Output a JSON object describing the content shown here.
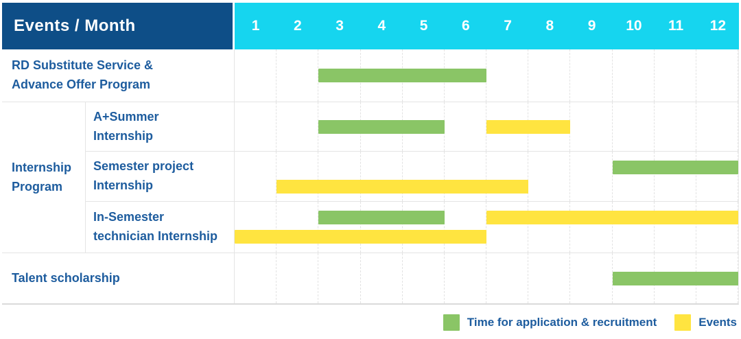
{
  "header": {
    "title": "Events / Month",
    "months": [
      "1",
      "2",
      "3",
      "4",
      "5",
      "6",
      "7",
      "8",
      "9",
      "10",
      "11",
      "12"
    ]
  },
  "group_label": "Internship Program",
  "group_label_display": "Internship\nProgram",
  "colors": {
    "header_bg": "#0e4e87",
    "month_header_bg": "#16d5ef",
    "header_text": "#ffffff",
    "label_text": "#1d5c9e",
    "application": "#8ac566",
    "event": "#ffe440"
  },
  "chart_data": {
    "type": "bar",
    "subtype": "gantt-timeline",
    "title": "Events / Month",
    "xlabel": "Month",
    "x_ticks": [
      "1",
      "2",
      "3",
      "4",
      "5",
      "6",
      "7",
      "8",
      "9",
      "10",
      "11",
      "12"
    ],
    "x_range": [
      1,
      12
    ],
    "grid": true,
    "legend_position": "bottom-right",
    "rows": [
      {
        "label": "RD Substitute Service & Advance Offer Program",
        "label_display": "RD Substitute Service &\nAdvance Offer Program",
        "group": "",
        "bars": [
          {
            "kind": "application",
            "start_month": 3,
            "end_month": 6,
            "track": "mid"
          }
        ]
      },
      {
        "label": "A+Summer Internship",
        "label_display": "A+Summer\nInternship",
        "group": "Internship Program",
        "bars": [
          {
            "kind": "application",
            "start_month": 3,
            "end_month": 5,
            "track": "mid"
          },
          {
            "kind": "event",
            "start_month": 7,
            "end_month": 8,
            "track": "mid"
          }
        ]
      },
      {
        "label": "Semester project Internship",
        "label_display": "Semester project\nInternship",
        "group": "Internship Program",
        "bars": [
          {
            "kind": "application",
            "start_month": 10,
            "end_month": 12,
            "track": "top"
          },
          {
            "kind": "event",
            "start_month": 2,
            "end_month": 7,
            "track": "bottom"
          }
        ]
      },
      {
        "label": "In-Semester technician Internship",
        "label_display": "In-Semester\ntechnician Internship",
        "group": "Internship Program",
        "bars": [
          {
            "kind": "application",
            "start_month": 3,
            "end_month": 5,
            "track": "top"
          },
          {
            "kind": "event",
            "start_month": 7,
            "end_month": 12,
            "track": "top"
          },
          {
            "kind": "event",
            "start_month": 1,
            "end_month": 6,
            "track": "bottom"
          }
        ]
      },
      {
        "label": "Talent scholarship",
        "label_display": "Talent scholarship",
        "group": "",
        "bars": [
          {
            "kind": "application",
            "start_month": 10,
            "end_month": 12,
            "track": "mid"
          }
        ]
      }
    ],
    "legend": [
      {
        "kind": "application",
        "label": "Time for application & recruitment",
        "color": "#8ac566"
      },
      {
        "kind": "event",
        "label": "Events",
        "color": "#ffe440"
      }
    ]
  }
}
